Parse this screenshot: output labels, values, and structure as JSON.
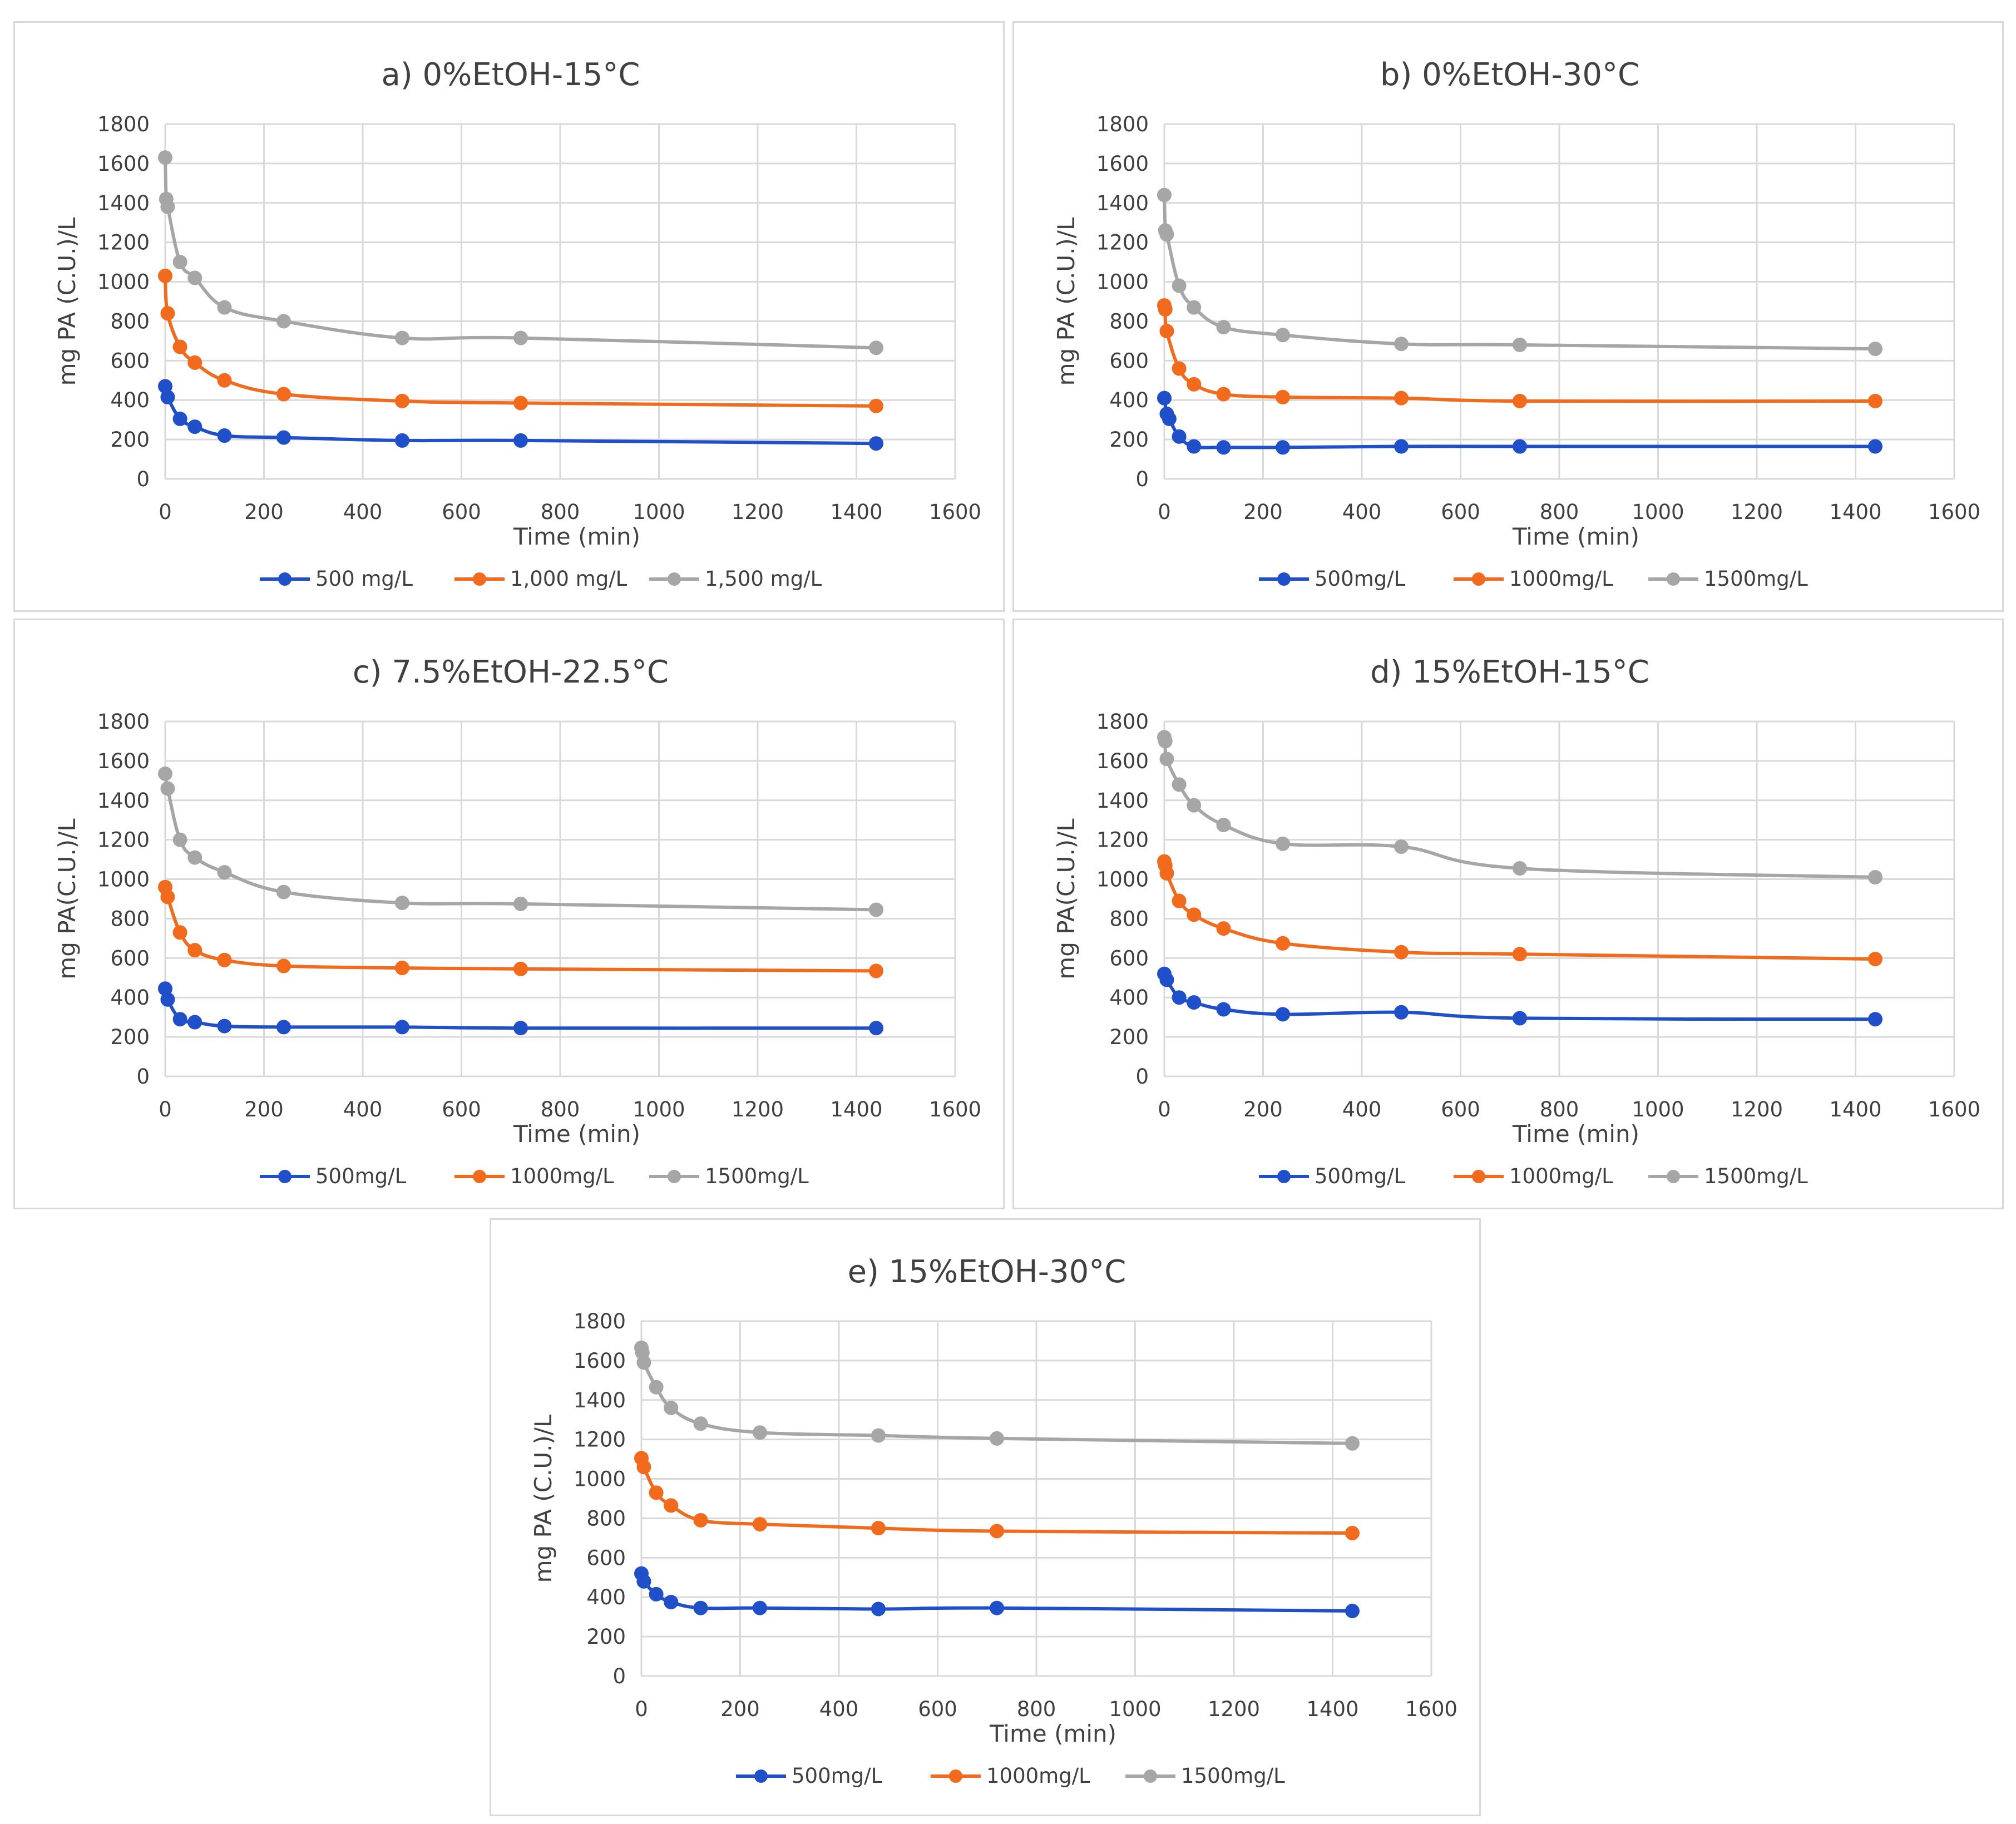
{
  "colors": {
    "series_500": "#1f4fc9",
    "series_1000": "#f26a1b",
    "series_1500": "#a6a6a6",
    "grid": "#d9d9d9",
    "text": "#404040"
  },
  "chart_data": [
    {
      "id": "a",
      "type": "line",
      "title": "a) 0%EtOH-15°C",
      "xlabel": "Time (min)",
      "ylabel": "mg PA (C.U.)/L",
      "xlim": [
        0,
        1600
      ],
      "ylim": [
        0,
        1800
      ],
      "xticks": [
        "0",
        "200",
        "400",
        "600",
        "800",
        "1000",
        "1200",
        "1400",
        "1600"
      ],
      "yticks": [
        "0",
        "200",
        "400",
        "600",
        "800",
        "1000",
        "1200",
        "1400",
        "1600",
        "1800"
      ],
      "series": [
        {
          "name": "500 mg/L",
          "x": [
            0,
            5,
            30,
            60,
            120,
            240,
            480,
            720,
            1440
          ],
          "values": [
            470,
            415,
            305,
            265,
            220,
            210,
            195,
            195,
            180
          ]
        },
        {
          "name": "1,000 mg/L",
          "x": [
            0,
            5,
            30,
            60,
            120,
            240,
            480,
            720,
            1440
          ],
          "values": [
            1030,
            840,
            670,
            590,
            500,
            430,
            395,
            385,
            370
          ]
        },
        {
          "name": "1,500 mg/L",
          "x": [
            0,
            2,
            5,
            30,
            60,
            120,
            240,
            480,
            720,
            1440
          ],
          "values": [
            1630,
            1420,
            1380,
            1100,
            1020,
            870,
            800,
            715,
            715,
            665
          ]
        }
      ]
    },
    {
      "id": "b",
      "type": "line",
      "title": "b) 0%EtOH-30°C",
      "xlabel": "Time (min)",
      "ylabel": "mg PA (C.U.)/L",
      "xlim": [
        0,
        1600
      ],
      "ylim": [
        0,
        1800
      ],
      "xticks": [
        "0",
        "200",
        "400",
        "600",
        "800",
        "1000",
        "1200",
        "1400",
        "1600"
      ],
      "yticks": [
        "0",
        "200",
        "400",
        "600",
        "800",
        "1000",
        "1200",
        "1400",
        "1600",
        "1800"
      ],
      "series": [
        {
          "name": "500mg/L",
          "x": [
            0,
            5,
            10,
            30,
            60,
            120,
            240,
            480,
            720,
            1440
          ],
          "values": [
            410,
            330,
            305,
            215,
            165,
            160,
            160,
            165,
            165,
            165
          ]
        },
        {
          "name": "1000mg/L",
          "x": [
            0,
            2,
            5,
            30,
            60,
            120,
            240,
            480,
            720,
            1440
          ],
          "values": [
            880,
            860,
            750,
            560,
            480,
            430,
            415,
            410,
            395,
            395
          ]
        },
        {
          "name": "1500mg/L",
          "x": [
            0,
            2,
            5,
            30,
            60,
            120,
            240,
            480,
            720,
            1440
          ],
          "values": [
            1440,
            1260,
            1240,
            980,
            870,
            770,
            730,
            685,
            680,
            660
          ]
        }
      ]
    },
    {
      "id": "c",
      "type": "line",
      "title": "c) 7.5%EtOH-22.5°C",
      "xlabel": "Time (min)",
      "ylabel": "mg PA(C.U.)/L",
      "xlim": [
        0,
        1600
      ],
      "ylim": [
        0,
        1800
      ],
      "xticks": [
        "0",
        "200",
        "400",
        "600",
        "800",
        "1000",
        "1200",
        "1400",
        "1600"
      ],
      "yticks": [
        "0",
        "200",
        "400",
        "600",
        "800",
        "1000",
        "1200",
        "1400",
        "1600",
        "1800"
      ],
      "series": [
        {
          "name": "500mg/L",
          "x": [
            0,
            5,
            30,
            60,
            120,
            240,
            480,
            720,
            1440
          ],
          "values": [
            445,
            390,
            290,
            275,
            255,
            250,
            250,
            245,
            245
          ]
        },
        {
          "name": "1000mg/L",
          "x": [
            0,
            5,
            30,
            60,
            120,
            240,
            480,
            720,
            1440
          ],
          "values": [
            960,
            910,
            730,
            640,
            590,
            560,
            550,
            545,
            535
          ]
        },
        {
          "name": "1500mg/L",
          "x": [
            0,
            5,
            30,
            60,
            120,
            240,
            480,
            720,
            1440
          ],
          "values": [
            1535,
            1460,
            1200,
            1110,
            1035,
            935,
            880,
            875,
            845
          ]
        }
      ]
    },
    {
      "id": "d",
      "type": "line",
      "title": "d) 15%EtOH-15°C",
      "xlabel": "Time (min)",
      "ylabel": "mg PA(C.U.)/L",
      "xlim": [
        0,
        1600
      ],
      "ylim": [
        0,
        1800
      ],
      "xticks": [
        "0",
        "200",
        "400",
        "600",
        "800",
        "1000",
        "1200",
        "1400",
        "1600"
      ],
      "yticks": [
        "0",
        "200",
        "400",
        "600",
        "800",
        "1000",
        "1200",
        "1400",
        "1600",
        "1800"
      ],
      "series": [
        {
          "name": "500mg/L",
          "x": [
            0,
            5,
            30,
            60,
            120,
            240,
            480,
            720,
            1440
          ],
          "values": [
            520,
            490,
            400,
            375,
            340,
            315,
            325,
            295,
            290
          ]
        },
        {
          "name": "1000mg/L",
          "x": [
            0,
            2,
            5,
            30,
            60,
            120,
            240,
            480,
            720,
            1440
          ],
          "values": [
            1090,
            1070,
            1030,
            890,
            820,
            750,
            675,
            630,
            620,
            595
          ]
        },
        {
          "name": "1500mg/L",
          "x": [
            0,
            2,
            5,
            30,
            60,
            120,
            240,
            480,
            720,
            1440
          ],
          "values": [
            1720,
            1700,
            1610,
            1480,
            1375,
            1275,
            1180,
            1165,
            1055,
            1010
          ]
        }
      ]
    },
    {
      "id": "e",
      "type": "line",
      "title": "e) 15%EtOH-30°C",
      "xlabel": "Time (min)",
      "ylabel": "mg PA (C.U.)/L",
      "xlim": [
        0,
        1600
      ],
      "ylim": [
        0,
        1800
      ],
      "xticks": [
        "0",
        "200",
        "400",
        "600",
        "800",
        "1000",
        "1200",
        "1400",
        "1600"
      ],
      "yticks": [
        "0",
        "200",
        "400",
        "600",
        "800",
        "1000",
        "1200",
        "1400",
        "1600",
        "1800"
      ],
      "series": [
        {
          "name": "500mg/L",
          "x": [
            0,
            5,
            30,
            60,
            120,
            240,
            480,
            720,
            1440
          ],
          "values": [
            520,
            480,
            415,
            375,
            345,
            345,
            340,
            345,
            330
          ]
        },
        {
          "name": "1000mg/L",
          "x": [
            0,
            5,
            30,
            60,
            120,
            240,
            480,
            720,
            1440
          ],
          "values": [
            1105,
            1060,
            930,
            865,
            790,
            770,
            750,
            735,
            725
          ]
        },
        {
          "name": "1500mg/L",
          "x": [
            0,
            2,
            5,
            30,
            60,
            120,
            240,
            480,
            720,
            1440
          ],
          "values": [
            1665,
            1640,
            1590,
            1465,
            1360,
            1280,
            1235,
            1220,
            1205,
            1180
          ]
        }
      ]
    }
  ]
}
